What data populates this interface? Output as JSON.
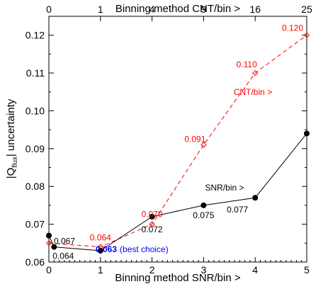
{
  "colors": {
    "snr": "#000000",
    "cnt": "#ff0000",
    "best": "#0000ff",
    "axis": "#000000"
  },
  "chart_data": {
    "type": "line",
    "xlabel": "Binning method SNR/bin >",
    "x2label": "Binning method CNT/bin >",
    "ylabel_main": "|Q",
    "ylabel_sub": "flux",
    "ylabel_tail": "| uncertainty",
    "xlim": [
      0,
      5
    ],
    "ylim": [
      0.06,
      0.125
    ],
    "x_ticks": [
      {
        "value": 0,
        "label": "0"
      },
      {
        "value": 1,
        "label": "1"
      },
      {
        "value": 2,
        "label": "2"
      },
      {
        "value": 3,
        "label": "3"
      },
      {
        "value": 4,
        "label": "4"
      },
      {
        "value": 5,
        "label": "5"
      }
    ],
    "x2_ticks": [
      {
        "value": 0,
        "label": "0"
      },
      {
        "value": 1,
        "label": "1"
      },
      {
        "value": 2,
        "label": "4"
      },
      {
        "value": 3,
        "label": "9"
      },
      {
        "value": 4,
        "label": "16"
      },
      {
        "value": 5,
        "label": "25"
      }
    ],
    "y_ticks": [
      {
        "value": 0.06,
        "label": "0.06"
      },
      {
        "value": 0.07,
        "label": "0.07"
      },
      {
        "value": 0.08,
        "label": "0.08"
      },
      {
        "value": 0.09,
        "label": "0.09"
      },
      {
        "value": 0.1,
        "label": "0.10"
      },
      {
        "value": 0.11,
        "label": "0.11"
      },
      {
        "value": 0.12,
        "label": "0.12"
      }
    ],
    "series": [
      {
        "name": "SNR/bin >",
        "style": "solid",
        "marker": "filled-circle",
        "points": [
          {
            "x": 0,
            "y": 0.067,
            "label": "0.067"
          },
          {
            "x": 0.1,
            "y": 0.064,
            "label": "0.064"
          },
          {
            "x": 1,
            "y": 0.063,
            "label": "0.063"
          },
          {
            "x": 2,
            "y": 0.072,
            "label": "0.072"
          },
          {
            "x": 3,
            "y": 0.075,
            "label": "0.075"
          },
          {
            "x": 4,
            "y": 0.077,
            "label": "0.077"
          },
          {
            "x": 5,
            "y": 0.094,
            "label": "0.094"
          }
        ]
      },
      {
        "name": "CNT/bin >",
        "style": "dashed",
        "marker": "open-diamond",
        "points": [
          {
            "x": 0,
            "y": 0.065,
            "label": ""
          },
          {
            "x": 1,
            "y": 0.064,
            "label": "0.064"
          },
          {
            "x": 2,
            "y": 0.07,
            "label": "0.070"
          },
          {
            "x": 3,
            "y": 0.091,
            "label": "0.091"
          },
          {
            "x": 4,
            "y": 0.11,
            "label": "0.110"
          },
          {
            "x": 5,
            "y": 0.12,
            "label": "0.120"
          }
        ]
      }
    ],
    "annotations": [
      {
        "text": "(best choice)",
        "x": 1,
        "y": 0.063
      }
    ]
  }
}
